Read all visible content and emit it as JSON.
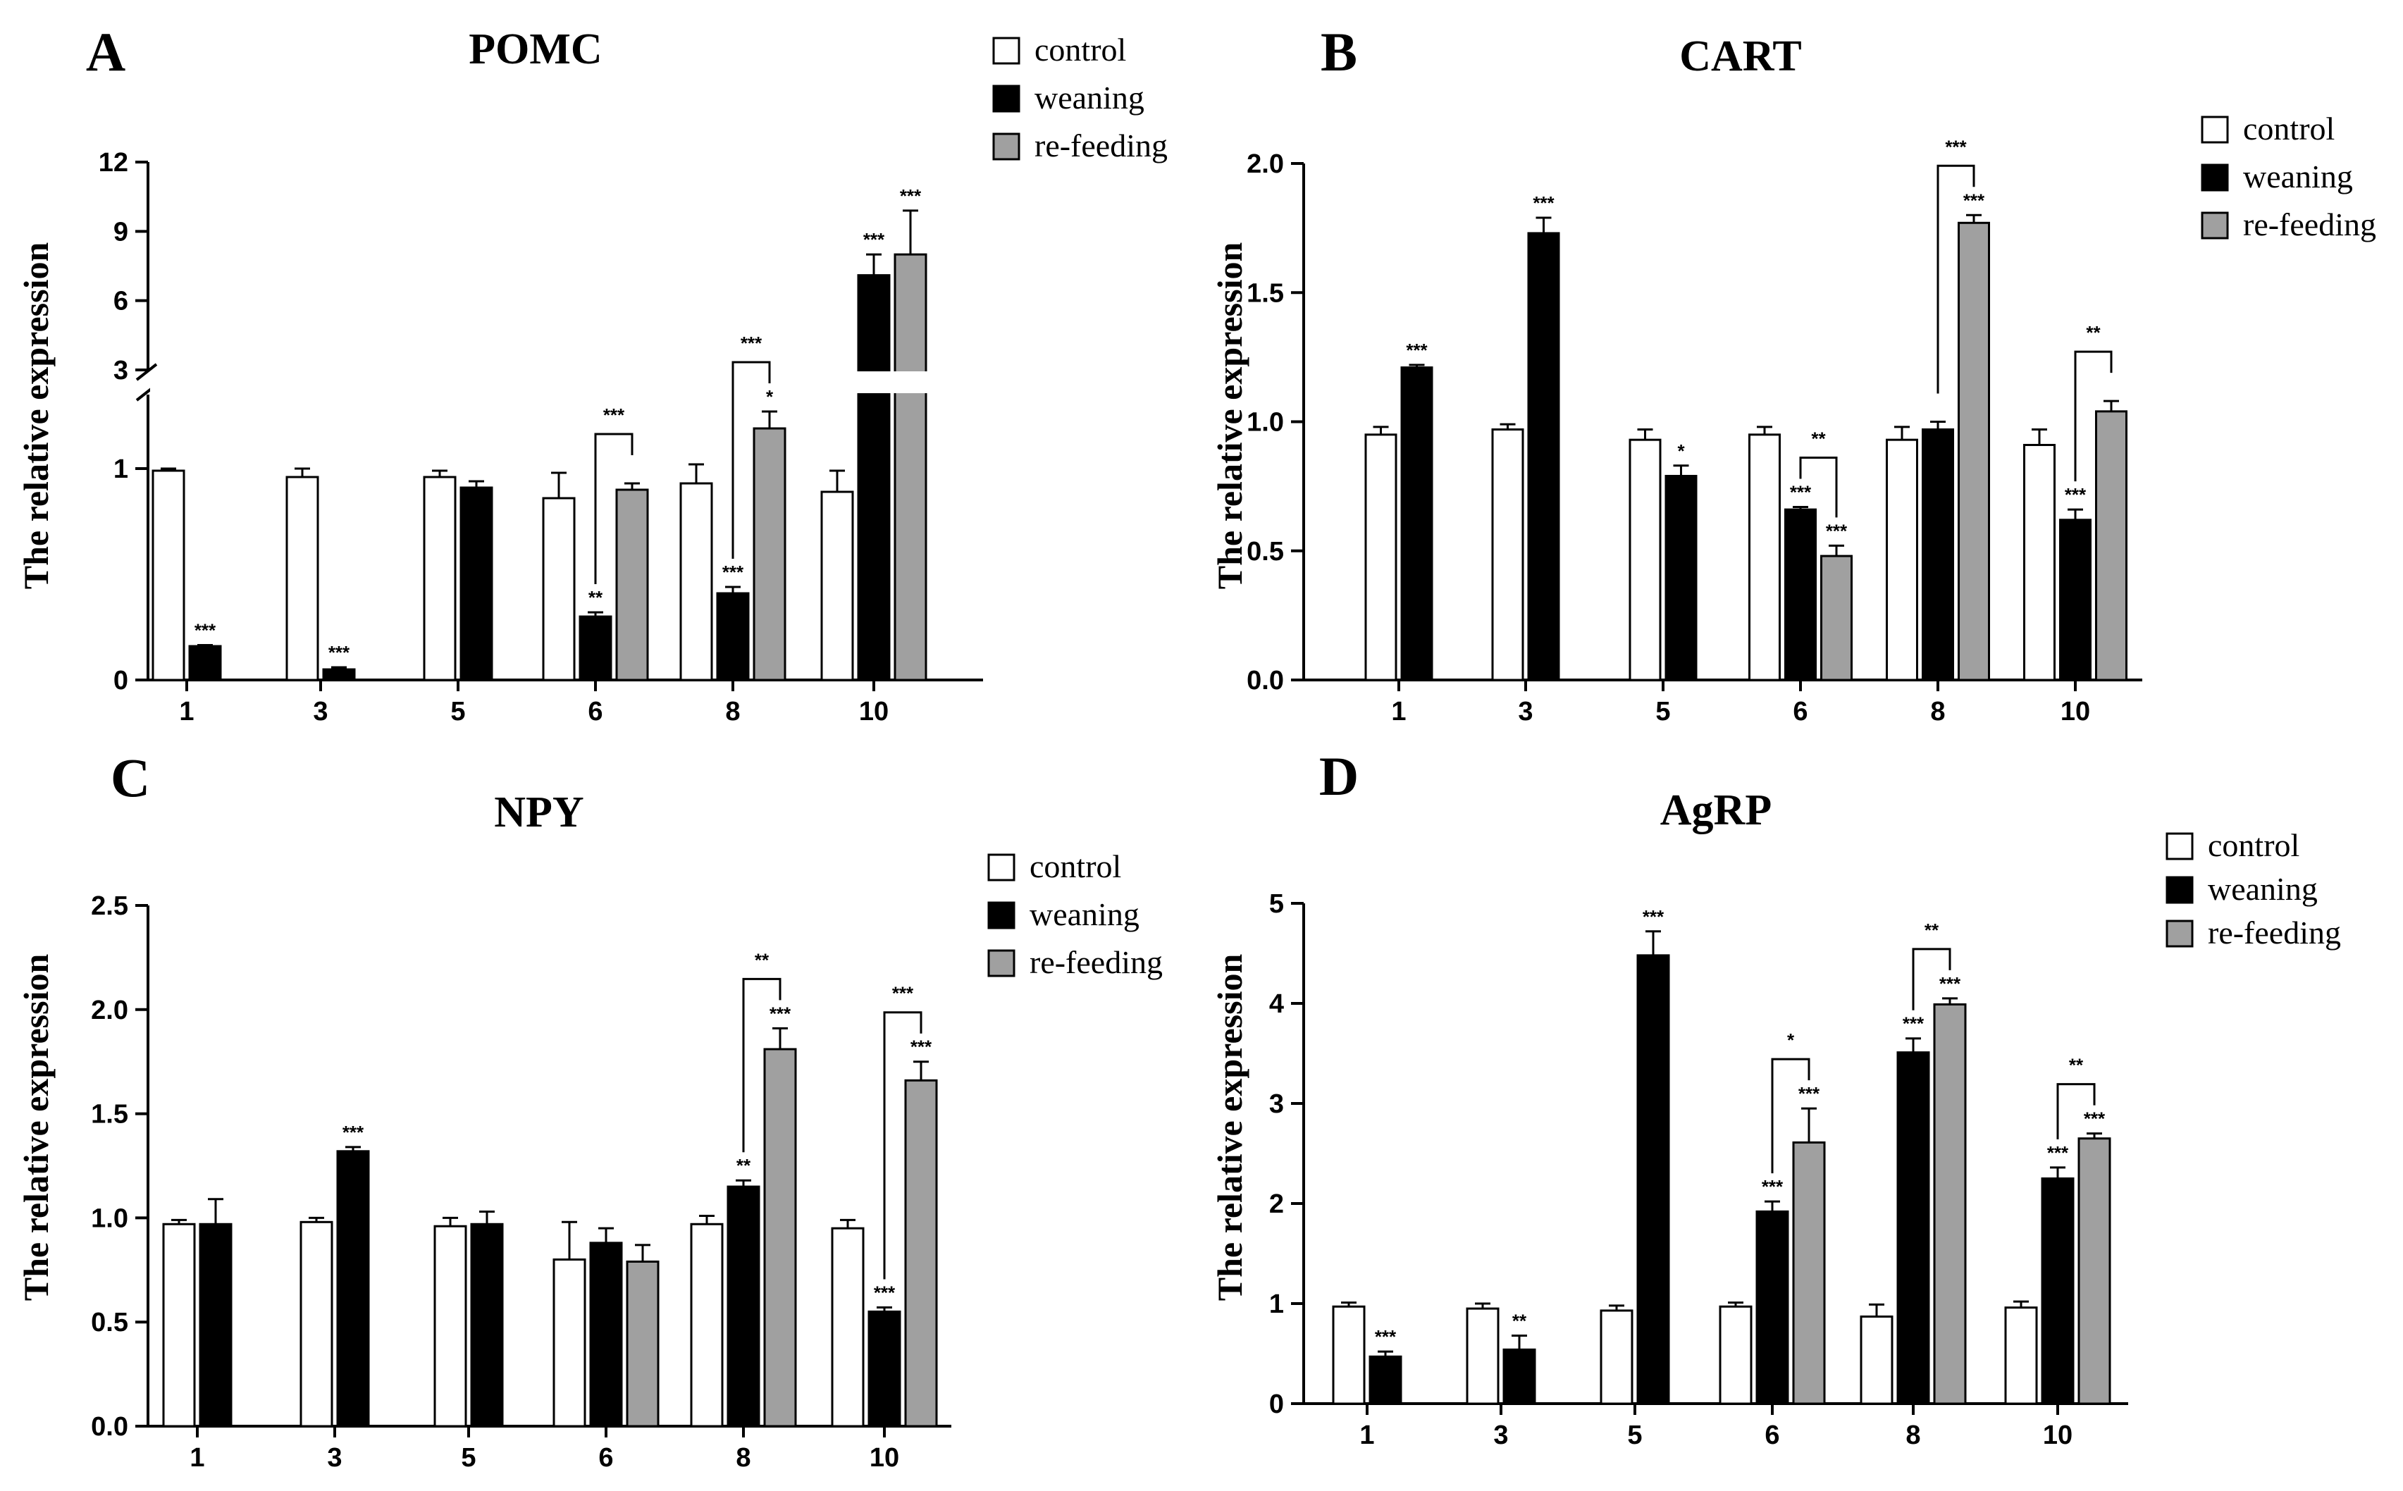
{
  "legend": {
    "entries": [
      {
        "name": "control",
        "color": "#ffffff"
      },
      {
        "name": "weaning",
        "color": "#000000"
      },
      {
        "name": "re-feeding",
        "color": "#a0a0a0"
      }
    ]
  },
  "chart_data": [
    {
      "panel": "A",
      "title": "POMC",
      "type": "bar",
      "ylabel": "The relative expression",
      "categories": [
        "1",
        "3",
        "5",
        "6",
        "8",
        "10"
      ],
      "y_axis": {
        "break": true,
        "lower_ticks": [
          "0",
          "1"
        ],
        "upper_ticks": [
          "3",
          "6",
          "9",
          "12"
        ],
        "lower_range": [
          0,
          1.35
        ],
        "upper_range": [
          3,
          12
        ]
      },
      "series": [
        {
          "name": "control",
          "values": [
            0.99,
            0.96,
            0.96,
            0.86,
            0.93,
            0.89
          ],
          "errors": [
            0.01,
            0.04,
            0.03,
            0.12,
            0.09,
            0.1
          ]
        },
        {
          "name": "weaning",
          "values": [
            0.16,
            0.05,
            0.91,
            0.3,
            0.41,
            7.1
          ],
          "errors": [
            0.005,
            0.01,
            0.03,
            0.02,
            0.03,
            0.9
          ]
        },
        {
          "name": "re-feeding",
          "values": [
            null,
            null,
            null,
            0.9,
            1.19,
            8.0
          ],
          "errors": [
            null,
            null,
            null,
            0.03,
            0.08,
            1.9
          ]
        }
      ],
      "significance": [
        {
          "category": "1",
          "series": "weaning",
          "label": "***"
        },
        {
          "category": "3",
          "series": "weaning",
          "label": "***"
        },
        {
          "category": "6",
          "series": "weaning",
          "label": "**"
        },
        {
          "category": "8",
          "series": "weaning",
          "label": "***"
        },
        {
          "category": "8",
          "series": "re-feeding",
          "label": "*"
        },
        {
          "category": "10",
          "series": "weaning",
          "label": "***"
        },
        {
          "category": "10",
          "series": "re-feeding",
          "label": "***"
        }
      ],
      "brackets": [
        {
          "category": "6",
          "label": "***"
        },
        {
          "category": "8",
          "label": "***"
        }
      ]
    },
    {
      "panel": "B",
      "title": "CART",
      "type": "bar",
      "ylabel": "The relative expression",
      "categories": [
        "1",
        "3",
        "5",
        "6",
        "8",
        "10"
      ],
      "y_axis": {
        "ticks": [
          "0.0",
          "0.5",
          "1.0",
          "1.5",
          "2.0"
        ],
        "range": [
          0,
          2.0
        ]
      },
      "series": [
        {
          "name": "control",
          "values": [
            0.95,
            0.97,
            0.93,
            0.95,
            0.93,
            0.91
          ],
          "errors": [
            0.03,
            0.02,
            0.04,
            0.03,
            0.05,
            0.06
          ]
        },
        {
          "name": "weaning",
          "values": [
            1.21,
            1.73,
            0.79,
            0.66,
            0.97,
            0.62
          ],
          "errors": [
            0.01,
            0.06,
            0.04,
            0.01,
            0.03,
            0.04
          ]
        },
        {
          "name": "re-feeding",
          "values": [
            null,
            null,
            null,
            0.48,
            1.77,
            1.04
          ],
          "errors": [
            null,
            null,
            null,
            0.04,
            0.03,
            0.04
          ]
        }
      ],
      "significance": [
        {
          "category": "1",
          "series": "weaning",
          "label": "***"
        },
        {
          "category": "3",
          "series": "weaning",
          "label": "***"
        },
        {
          "category": "5",
          "series": "weaning",
          "label": "*"
        },
        {
          "category": "6",
          "series": "weaning",
          "label": "***"
        },
        {
          "category": "6",
          "series": "re-feeding",
          "label": "***"
        },
        {
          "category": "8",
          "series": "re-feeding",
          "label": "***"
        },
        {
          "category": "10",
          "series": "weaning",
          "label": "***"
        }
      ],
      "brackets": [
        {
          "category": "6",
          "label": "**"
        },
        {
          "category": "8",
          "label": "***"
        },
        {
          "category": "10",
          "label": "**"
        }
      ]
    },
    {
      "panel": "C",
      "title": "NPY",
      "type": "bar",
      "ylabel": "The relative expression",
      "categories": [
        "1",
        "3",
        "5",
        "6",
        "8",
        "10"
      ],
      "y_axis": {
        "ticks": [
          "0.0",
          "0.5",
          "1.0",
          "1.5",
          "2.0",
          "2.5"
        ],
        "range": [
          0,
          2.5
        ]
      },
      "series": [
        {
          "name": "control",
          "values": [
            0.97,
            0.98,
            0.96,
            0.8,
            0.97,
            0.95
          ],
          "errors": [
            0.02,
            0.02,
            0.04,
            0.18,
            0.04,
            0.04
          ]
        },
        {
          "name": "weaning",
          "values": [
            0.97,
            1.32,
            0.97,
            0.88,
            1.15,
            0.55
          ],
          "errors": [
            0.12,
            0.02,
            0.06,
            0.07,
            0.03,
            0.02
          ]
        },
        {
          "name": "re-feeding",
          "values": [
            null,
            null,
            null,
            0.79,
            1.81,
            1.66
          ],
          "errors": [
            null,
            null,
            null,
            0.08,
            0.1,
            0.09
          ]
        }
      ],
      "significance": [
        {
          "category": "3",
          "series": "weaning",
          "label": "***"
        },
        {
          "category": "8",
          "series": "weaning",
          "label": "**"
        },
        {
          "category": "8",
          "series": "re-feeding",
          "label": "***"
        },
        {
          "category": "10",
          "series": "weaning",
          "label": "***"
        },
        {
          "category": "10",
          "series": "re-feeding",
          "label": "***"
        }
      ],
      "brackets": [
        {
          "category": "8",
          "label": "**"
        },
        {
          "category": "10",
          "label": "***"
        }
      ]
    },
    {
      "panel": "D",
      "title": "AgRP",
      "type": "bar",
      "ylabel": "The relative expression",
      "categories": [
        "1",
        "3",
        "5",
        "6",
        "8",
        "10"
      ],
      "y_axis": {
        "ticks": [
          "0",
          "1",
          "2",
          "3",
          "4",
          "5"
        ],
        "range": [
          0,
          5
        ]
      },
      "series": [
        {
          "name": "control",
          "values": [
            0.97,
            0.95,
            0.93,
            0.97,
            0.87,
            0.96
          ],
          "errors": [
            0.04,
            0.05,
            0.05,
            0.04,
            0.12,
            0.06
          ]
        },
        {
          "name": "weaning",
          "values": [
            0.47,
            0.54,
            4.48,
            1.92,
            3.51,
            2.25
          ],
          "errors": [
            0.05,
            0.14,
            0.24,
            0.1,
            0.14,
            0.11
          ]
        },
        {
          "name": "re-feeding",
          "values": [
            null,
            null,
            null,
            2.61,
            3.99,
            2.65
          ],
          "errors": [
            null,
            null,
            null,
            0.34,
            0.06,
            0.05
          ]
        }
      ],
      "significance": [
        {
          "category": "1",
          "series": "weaning",
          "label": "***"
        },
        {
          "category": "3",
          "series": "weaning",
          "label": "**"
        },
        {
          "category": "5",
          "series": "weaning",
          "label": "***"
        },
        {
          "category": "6",
          "series": "weaning",
          "label": "***"
        },
        {
          "category": "6",
          "series": "re-feeding",
          "label": "***"
        },
        {
          "category": "8",
          "series": "weaning",
          "label": "***"
        },
        {
          "category": "8",
          "series": "re-feeding",
          "label": "***"
        },
        {
          "category": "10",
          "series": "weaning",
          "label": "***"
        },
        {
          "category": "10",
          "series": "re-feeding",
          "label": "***"
        }
      ],
      "brackets": [
        {
          "category": "6",
          "label": "*"
        },
        {
          "category": "8",
          "label": "**"
        },
        {
          "category": "10",
          "label": "**"
        }
      ]
    }
  ]
}
